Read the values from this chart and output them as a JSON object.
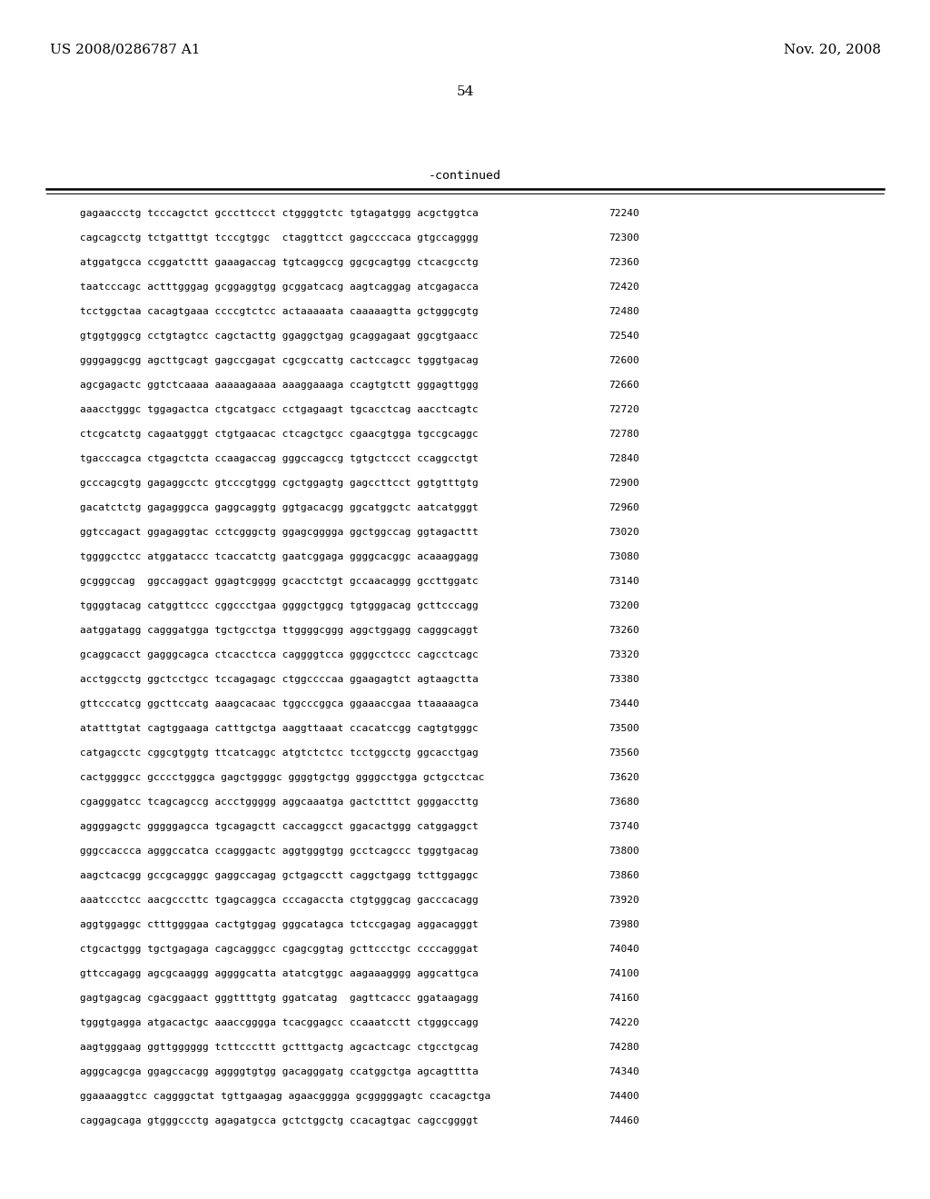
{
  "header_left": "US 2008/0286787 A1",
  "header_right": "Nov. 20, 2008",
  "page_number": "54",
  "continued_label": "-continued",
  "lines": [
    [
      "gagaaccctg tcccagctct gcccttccct ctggggtctc tgtagatggg acgctggtca",
      "72240"
    ],
    [
      "cagcagcctg tctgatttgt tcccgtggc  ctaggttcct gagccccaca gtgccagggg",
      "72300"
    ],
    [
      "atggatgcca ccggatcttt gaaagaccag tgtcaggccg ggcgcagtgg ctcacgcctg",
      "72360"
    ],
    [
      "taatcccagc actttgggag gcggaggtgg gcggatcacg aagtcaggag atcgagacca",
      "72420"
    ],
    [
      "tcctggctaa cacagtgaaa ccccgtctcc actaaaaata caaaaagtta gctgggcgtg",
      "72480"
    ],
    [
      "gtggtgggcg cctgtagtcc cagctacttg ggaggctgag gcaggagaat ggcgtgaacc",
      "72540"
    ],
    [
      "ggggaggcgg agcttgcagt gagccgagat cgcgccattg cactccagcc tgggtgacag",
      "72600"
    ],
    [
      "agcgagactc ggtctcaaaa aaaaagaaaa aaaggaaaga ccagtgtctt gggagttggg",
      "72660"
    ],
    [
      "aaacctgggc tggagactca ctgcatgacc cctgagaagt tgcacctcag aacctcagtc",
      "72720"
    ],
    [
      "ctcgcatctg cagaatgggt ctgtgaacac ctcagctgcc cgaacgtgga tgccgcaggc",
      "72780"
    ],
    [
      "tgacccagca ctgagctcta ccaagaccag gggccagccg tgtgctccct ccaggcctgt",
      "72840"
    ],
    [
      "gcccagcgtg gagaggcctc gtcccgtggg cgctggagtg gagccttcct ggtgtttgtg",
      "72900"
    ],
    [
      "gacatctctg gagagggcca gaggcaggtg ggtgacacgg ggcatggctc aatcatgggt",
      "72960"
    ],
    [
      "ggtccagact ggagaggtac cctcgggctg ggagcgggga ggctggccag ggtagacttt",
      "73020"
    ],
    [
      "tggggcctcc atggataccc tcaccatctg gaatcggaga ggggcacggc acaaaggagg",
      "73080"
    ],
    [
      "gcgggccag  ggccaggact ggagtcgggg gcacctctgt gccaacaggg gccttggatc",
      "73140"
    ],
    [
      "tggggtacag catggttccc cggccctgaa ggggctggcg tgtgggacag gcttcccagg",
      "73200"
    ],
    [
      "aatggatagg cagggatgga tgctgcctga ttggggcggg aggctggagg cagggcaggt",
      "73260"
    ],
    [
      "gcaggcacct gagggcagca ctcacctcca caggggtcca ggggcctccc cagcctcagc",
      "73320"
    ],
    [
      "acctggcctg ggctcctgcc tccagagagc ctggccccaa ggaagagtct agtaagctta",
      "73380"
    ],
    [
      "gttcccatcg ggcttccatg aaagcacaac tggcccggca ggaaaccgaa ttaaaaagca",
      "73440"
    ],
    [
      "atatttgtat cagtggaaga catttgctga aaggttaaat ccacatccgg cagtgtgggc",
      "73500"
    ],
    [
      "catgagcctc cggcgtggtg ttcatcaggc atgtctctcc tcctggcctg ggcacctgag",
      "73560"
    ],
    [
      "cactggggcc gcccctgggca gagctggggc ggggtgctgg ggggcctgga gctgcctcac",
      "73620"
    ],
    [
      "cgagggatcc tcagcagccg accctggggg aggcaaatga gactctttct ggggaccttg",
      "73680"
    ],
    [
      "aggggagctc gggggagcca tgcagagctt caccaggcct ggacactggg catggaggct",
      "73740"
    ],
    [
      "gggccaccca agggccatca ccagggactc aggtgggtgg gcctcagccc tgggtgacag",
      "73800"
    ],
    [
      "aagctcacgg gccgcagggc gaggccagag gctgagcctt caggctgagg tcttggaggc",
      "73860"
    ],
    [
      "aaatccctcc aacgcccttc tgagcaggca cccagaccta ctgtgggcag gacccacagg",
      "73920"
    ],
    [
      "aggtggaggc ctttggggaa cactgtggag gggcatagca tctccgagag aggacagggt",
      "73980"
    ],
    [
      "ctgcactggg tgctgagaga cagcagggcc cgagcggtag gcttccctgc ccccagggat",
      "74040"
    ],
    [
      "gttccagagg agcgcaaggg aggggcatta atatcgtggc aagaaagggg aggcattgca",
      "74100"
    ],
    [
      "gagtgagcag cgacggaact gggttttgtg ggatcatag  gagttcaccc ggataagagg",
      "74160"
    ],
    [
      "tgggtgagga atgacactgc aaaccgggga tcacggagcc ccaaatcctt ctgggccagg",
      "74220"
    ],
    [
      "aagtgggaag ggttgggggg tcttcccttt gctttgactg agcactcagc ctgcctgcag",
      "74280"
    ],
    [
      "agggcagcga ggagccacgg aggggtgtgg gacagggatg ccatggctga agcagtttta",
      "74340"
    ],
    [
      "ggaaaaggtcc caggggctat tgttgaagag agaacgggga gcgggggagtc ccacagctga",
      "74400"
    ],
    [
      "caggagcaga gtgggccctg agagatgcca gctctggctg ccacagtgac cagccggggt",
      "74460"
    ]
  ]
}
